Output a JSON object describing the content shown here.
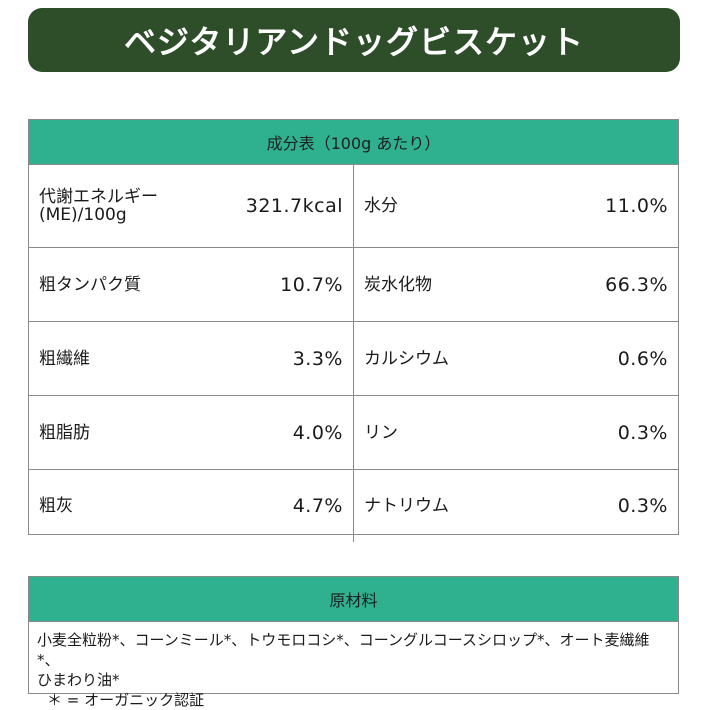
{
  "title": "ベジタリアンドッグビスケット",
  "nutrition": {
    "header": "成分表（100g あたり）",
    "rows": [
      [
        {
          "label_line1": "代謝エネルギー",
          "label_line2": "(ME)/100g",
          "value": "321.7kcal"
        },
        {
          "label": "水分",
          "value": "11.0%"
        }
      ],
      [
        {
          "label": "粗タンパク質",
          "value": "10.7%"
        },
        {
          "label": "炭水化物",
          "value": "66.3%"
        }
      ],
      [
        {
          "label": "粗繊維",
          "value": "3.3%"
        },
        {
          "label": "カルシウム",
          "value": "0.6%"
        }
      ],
      [
        {
          "label": "粗脂肪",
          "value": "4.0%"
        },
        {
          "label": "リン",
          "value": "0.3%"
        }
      ],
      [
        {
          "label": "粗灰",
          "value": "4.7%"
        },
        {
          "label": "ナトリウム",
          "value": "0.3%"
        }
      ]
    ]
  },
  "ingredients": {
    "header": "原材料",
    "line1": "小麦全粒粉*、コーンミール*、トウモロコシ*、コーングルコースシロップ*、オート麦繊維*、",
    "line2": "ひまわり油*",
    "note": "＊ = オーガニック認証"
  },
  "colors": {
    "banner": "#2e4e2a",
    "header_band": "#2fb08f"
  }
}
